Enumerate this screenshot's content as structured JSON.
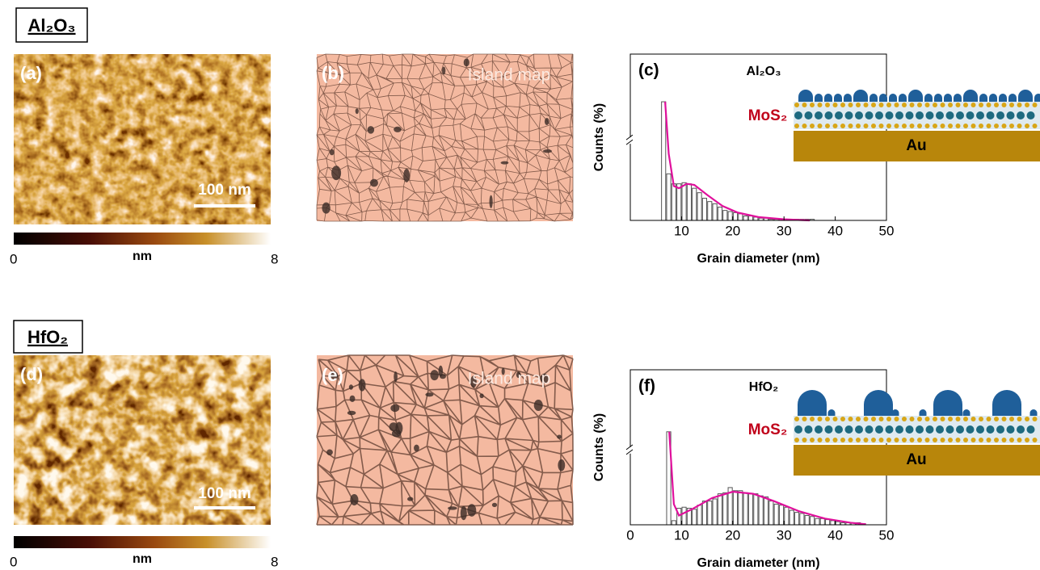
{
  "figure": {
    "materials": [
      "Al₂O₃",
      "HfO₂"
    ],
    "panel_labels": [
      "(a)",
      "(b)",
      "(d)",
      "(e)"
    ],
    "island_map": "Island map",
    "scale_bar": "100 nm",
    "colorbar": {
      "label": "nm",
      "lim": [
        0,
        8
      ]
    }
  },
  "chart_data": [
    {
      "type": "histogram",
      "title": "(c)",
      "annotation": "Al₂O₃",
      "inset_labels": [
        "MoS₂",
        "Au"
      ],
      "xlabel": "Grain diameter (nm)",
      "ylabel": "Counts (%)",
      "bins": [
        6,
        7,
        8,
        9,
        10,
        11,
        12,
        13,
        14,
        15,
        16,
        17,
        18,
        19,
        20,
        21,
        22,
        23,
        24,
        25,
        26,
        27,
        28,
        29,
        30,
        31,
        32,
        33,
        34,
        35,
        36
      ],
      "values": [
        10.7,
        4.2,
        3.3,
        3.3,
        3.4,
        3.3,
        2.9,
        2.5,
        2.0,
        1.7,
        1.5,
        1.2,
        0.9,
        0.8,
        0.7,
        0.6,
        0.4,
        0.4,
        0.3,
        0.2,
        0.2,
        0.1,
        0.1,
        0.1,
        0.1,
        0.1,
        0.1,
        0.1,
        0.1,
        0.1
      ],
      "color": "#ffffff",
      "edgecolor": "#555555",
      "fit": {
        "color": "#e0109c",
        "x": [
          6.8,
          7.5,
          8.5,
          9.5,
          11,
          12.5,
          15,
          18,
          21,
          25,
          30,
          35
        ],
        "values": [
          10.7,
          6,
          3.1,
          2.9,
          3.3,
          3.2,
          2.3,
          1.3,
          0.7,
          0.3,
          0.1,
          0
        ]
      },
      "xlim": [
        0,
        50
      ],
      "xticks": [
        10,
        20,
        30,
        40,
        50
      ],
      "ylim": [
        0,
        15
      ]
    },
    {
      "type": "histogram",
      "title": "(f)",
      "annotation": "HfO₂",
      "inset_labels": [
        "MoS₂",
        "Au"
      ],
      "xlabel": "Grain diameter (nm)",
      "ylabel": "Counts (%)",
      "bins": [
        7,
        8,
        9,
        10,
        11,
        12,
        13,
        14,
        15,
        16,
        17,
        18,
        19,
        20,
        21,
        22,
        23,
        24,
        25,
        26,
        27,
        28,
        29,
        30,
        31,
        32,
        33,
        34,
        35,
        36,
        37,
        38,
        39,
        40,
        41,
        42,
        43,
        44,
        45,
        46
      ],
      "values": [
        9.0,
        0.4,
        1.6,
        1.7,
        1.6,
        1.5,
        1.9,
        2.3,
        2.3,
        2.5,
        3.0,
        3.1,
        3.6,
        3.3,
        3.3,
        3.1,
        3.0,
        3.0,
        2.8,
        2.7,
        2.3,
        2.0,
        1.9,
        1.7,
        1.4,
        1.2,
        1.1,
        0.9,
        0.8,
        0.6,
        0.6,
        0.5,
        0.4,
        0.3,
        0.2,
        0.2,
        0.2,
        0.2,
        0.1
      ],
      "color": "#ffffff",
      "edgecolor": "#555555",
      "fit": {
        "color": "#e0109c",
        "x": [
          7.6,
          8.5,
          9.5,
          12,
          16,
          20,
          24,
          28,
          33,
          38,
          43,
          46
        ],
        "values": [
          9.0,
          2,
          0.9,
          1.5,
          2.6,
          3.2,
          3.0,
          2.3,
          1.3,
          0.6,
          0.2,
          0.05
        ]
      },
      "xlim": [
        0,
        50
      ],
      "xticks": [
        0,
        10,
        20,
        30,
        40,
        50
      ],
      "ylim": [
        0,
        15
      ]
    }
  ]
}
